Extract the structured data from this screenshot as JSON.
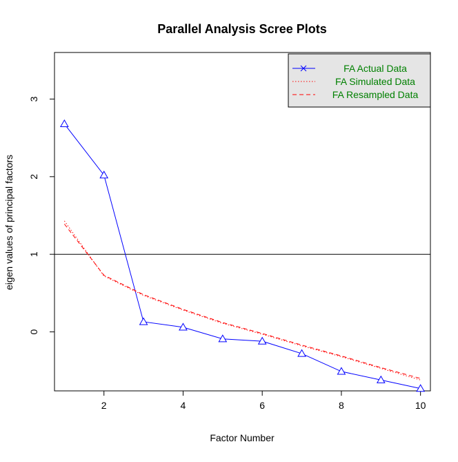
{
  "chart_data": {
    "type": "line",
    "title": "Parallel Analysis Scree Plots",
    "xlabel": "Factor Number",
    "ylabel": "eigen values of principal factors",
    "xlim": [
      0.75,
      10.25
    ],
    "ylim": [
      -0.76,
      3.6
    ],
    "xticks": [
      2,
      4,
      6,
      8,
      10
    ],
    "yticks": [
      0,
      1,
      2,
      3
    ],
    "grid": false,
    "legend_position": "top-right",
    "reference_line": {
      "y": 1,
      "color": "#000000"
    },
    "x": [
      1,
      2,
      3,
      4,
      5,
      6,
      7,
      8,
      9,
      10
    ],
    "series": [
      {
        "name": "FA  Actual Data",
        "style": "solid",
        "marker": "triangle",
        "legend_marker": "x",
        "color": "#0000ff",
        "values": [
          2.68,
          2.02,
          0.13,
          0.06,
          -0.09,
          -0.12,
          -0.28,
          -0.51,
          -0.62,
          -0.73
        ]
      },
      {
        "name": "FA  Simulated Data",
        "style": "dotted",
        "color": "#ff0000",
        "values": [
          1.43,
          0.72,
          0.47,
          0.28,
          0.11,
          -0.03,
          -0.18,
          -0.32,
          -0.47,
          -0.62
        ]
      },
      {
        "name": "FA  Resampled Data",
        "style": "dashed",
        "color": "#ff0000",
        "values": [
          1.39,
          0.73,
          0.48,
          0.29,
          0.12,
          -0.02,
          -0.17,
          -0.31,
          -0.46,
          -0.6
        ]
      }
    ],
    "legend_label_color": "#008000",
    "legend_background": "#e5e5e5"
  }
}
